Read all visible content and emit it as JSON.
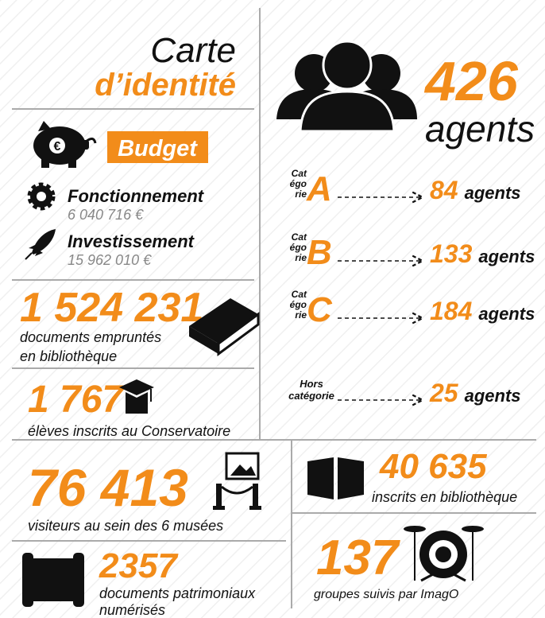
{
  "header": {
    "title_1": "Carte",
    "title_2": "d’identité"
  },
  "budget": {
    "label": "Budget",
    "items": [
      {
        "label": "Fonctionnement",
        "value": "6 040 716 €"
      },
      {
        "label": "Investissement",
        "value": "15 962 010 €"
      }
    ]
  },
  "loans": {
    "value": "1 524 231",
    "text_1": "documents empruntés",
    "text_2": "en bibliothèque"
  },
  "conservatoire": {
    "value": "1 767",
    "text": "élèves inscrits au Conservatoire"
  },
  "agents": {
    "total": "426",
    "label": "agents",
    "categories": [
      {
        "prefix": [
          "Cat",
          "égo",
          "rie"
        ],
        "letter": "A",
        "value": "84",
        "unit": "agents"
      },
      {
        "prefix": [
          "Cat",
          "égo",
          "rie"
        ],
        "letter": "B",
        "value": "133",
        "unit": "agents"
      },
      {
        "prefix": [
          "Cat",
          "égo",
          "rie"
        ],
        "letter": "C",
        "value": "184",
        "unit": "agents"
      },
      {
        "prefix": [
          "Hors",
          "catégorie"
        ],
        "value": "25",
        "unit": "agents"
      }
    ]
  },
  "museums": {
    "value": "76 413",
    "text": "visiteurs au sein des 6 musées"
  },
  "library": {
    "value": "40 635",
    "text": "inscrits en bibliothèque"
  },
  "heritage": {
    "value": "2357",
    "text_1": "documents patrimoniaux",
    "text_2": "numérisés"
  },
  "imago": {
    "value": "137",
    "text": "groupes suivis par ImagO"
  }
}
